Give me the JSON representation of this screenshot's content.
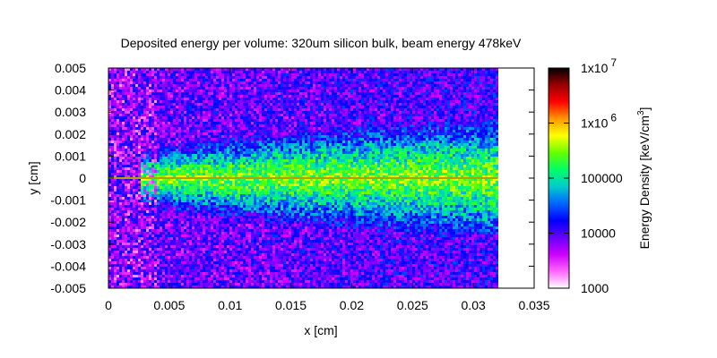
{
  "chart_data": {
    "type": "heatmap",
    "title": "Deposited energy per volume: 320um silicon bulk, beam energy 478keV",
    "xlabel": "x [cm]",
    "ylabel": "y [cm]",
    "xlim": [
      0,
      0.035
    ],
    "ylim": [
      -0.005,
      0.005
    ],
    "x_ticks": [
      "0",
      "0.005",
      "0.01",
      "0.015",
      "0.02",
      "0.025",
      "0.03",
      "0.035"
    ],
    "y_ticks": [
      "-0.005",
      "-0.004",
      "-0.003",
      "-0.002",
      "-0.001",
      "0",
      "0.001",
      "0.002",
      "0.003",
      "0.004",
      "0.005"
    ],
    "data_x_extent": [
      0,
      0.032
    ],
    "colorbar": {
      "label": "Energy Density [keV/cm",
      "label_exp": "3",
      "label_close": "]",
      "scale": "log",
      "range": [
        1000,
        10000000
      ],
      "tick_labels": [
        {
          "base": "1000",
          "exp": "",
          "value": 1000
        },
        {
          "base": "10000",
          "exp": "",
          "value": 10000
        },
        {
          "base": "100000",
          "exp": "",
          "value": 100000
        },
        {
          "base": "1x10",
          "exp": "6",
          "value": 1000000
        },
        {
          "base": "1x10",
          "exp": "7",
          "value": 10000000
        }
      ],
      "palette": [
        "#ffffff",
        "#ff66ff",
        "#cc00ff",
        "#6600ff",
        "#0000ff",
        "#0066ff",
        "#00cccc",
        "#00ff66",
        "#66ff00",
        "#ffff00",
        "#ff9900",
        "#ff0000",
        "#990000",
        "#000000"
      ]
    },
    "grid": false
  }
}
